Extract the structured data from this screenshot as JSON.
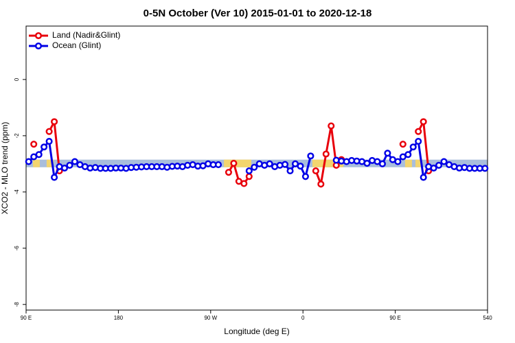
{
  "chart_data": {
    "type": "line",
    "title": "0-5N October (Ver 10)   2015-01-01 to 2020-12-18",
    "xlabel": "Longitude (deg E)",
    "ylabel": "XCO2 - MLO trend (ppm)",
    "xlim": [
      90,
      540
    ],
    "ylim": [
      -8.2,
      1.9
    ],
    "xticks": [
      {
        "value": 90,
        "label": "90 E"
      },
      180,
      {
        "value": 270,
        "label": "90 W"
      },
      {
        "value": 360,
        "label": "0"
      },
      {
        "value": 450,
        "label": "90 E"
      },
      540
    ],
    "yticks": [
      0,
      -2,
      -4,
      -6,
      -8
    ],
    "legend": "top-left",
    "band": {
      "ylim": [
        -2.85,
        -3.12
      ],
      "color": "#a9bedc",
      "land_color": "#f3d56f",
      "land": [
        [
          96.7,
          103.4
        ],
        [
          110,
          116.8
        ],
        [
          282.9,
          309.6
        ],
        [
          369.2,
          399.4
        ],
        [
          459.6,
          466.3
        ],
        [
          469.7,
          476.4
        ]
      ]
    },
    "x": [
      92.5,
      97.5,
      102.5,
      107.5,
      112.5,
      117.5,
      122.5,
      127.5,
      132.5,
      137.5,
      142.5,
      147.5,
      152.5,
      157.5,
      162.5,
      167.5,
      172.5,
      177.5,
      182.5,
      187.5,
      192.5,
      197.5,
      202.5,
      207.5,
      212.5,
      217.5,
      222.5,
      227.5,
      232.5,
      237.5,
      242.5,
      247.5,
      252.5,
      257.5,
      262.5,
      267.5,
      272.5,
      277.5,
      282.5,
      287.5,
      292.5,
      297.5,
      302.5,
      307.5,
      312.5,
      317.5,
      322.5,
      327.5,
      332.5,
      337.5,
      342.5,
      347.5,
      352.5,
      357.5,
      362.5,
      367.5,
      372.5,
      377.5,
      382.5,
      387.5,
      392.5,
      397.5,
      402.5,
      407.5,
      412.5,
      417.5,
      422.5,
      427.5,
      432.5,
      437.5,
      442.5,
      447.5,
      452.5,
      457.5,
      462.5,
      467.5,
      472.5,
      477.5,
      482.5,
      487.5,
      492.5,
      497.5,
      502.5,
      507.5,
      512.5,
      517.5,
      522.5,
      527.5,
      532.5,
      537.5
    ],
    "series": [
      {
        "name": "Land (Nadir&Glint)",
        "color": "#e8000b",
        "values": [
          null,
          -2.3,
          null,
          null,
          -1.85,
          -1.5,
          -3.25,
          null,
          null,
          null,
          null,
          null,
          null,
          null,
          null,
          null,
          null,
          null,
          null,
          null,
          null,
          null,
          null,
          null,
          null,
          null,
          null,
          null,
          null,
          null,
          null,
          null,
          null,
          null,
          null,
          null,
          null,
          null,
          null,
          -3.3,
          -2.98,
          -3.62,
          -3.7,
          -3.45,
          null,
          null,
          null,
          null,
          null,
          null,
          null,
          null,
          null,
          null,
          null,
          null,
          -3.25,
          -3.72,
          -2.65,
          -1.65,
          -3.05,
          -2.85,
          null,
          null,
          null,
          null,
          null,
          null,
          null,
          null,
          null,
          null,
          null,
          -2.3,
          null,
          null,
          -1.85,
          -1.5,
          -3.25,
          null,
          null,
          null,
          null,
          null,
          null,
          null,
          null,
          null,
          null,
          null
        ]
      },
      {
        "name": "Ocean (Glint)",
        "color": "#0000e6",
        "values": [
          -2.92,
          -2.75,
          -2.67,
          -2.4,
          -2.2,
          -3.48,
          -3.1,
          -3.15,
          -3.05,
          -2.92,
          -3.03,
          -3.1,
          -3.15,
          -3.13,
          -3.16,
          -3.16,
          -3.16,
          -3.15,
          -3.15,
          -3.16,
          -3.13,
          -3.12,
          -3.11,
          -3.1,
          -3.1,
          -3.1,
          -3.1,
          -3.12,
          -3.09,
          -3.08,
          -3.1,
          -3.05,
          -3.03,
          -3.08,
          -3.07,
          -3.0,
          -3.03,
          -3.03,
          null,
          null,
          null,
          null,
          null,
          -3.25,
          -3.12,
          -3.0,
          -3.05,
          -3.0,
          -3.1,
          -3.05,
          -3.02,
          -3.25,
          -3.0,
          -3.08,
          -3.45,
          -2.72,
          null,
          null,
          null,
          null,
          -2.87,
          -2.9,
          -2.92,
          -2.88,
          -2.9,
          -2.92,
          -2.98,
          -2.88,
          -2.92,
          -3.0,
          -2.62,
          -2.85,
          -2.92,
          -2.75,
          -2.67,
          -2.4,
          -2.2,
          -3.48,
          -3.1,
          -3.15,
          -3.05,
          -2.92,
          -3.03,
          -3.1,
          -3.15,
          -3.13,
          -3.16,
          -3.16,
          -3.16,
          -3.16
        ]
      }
    ]
  }
}
